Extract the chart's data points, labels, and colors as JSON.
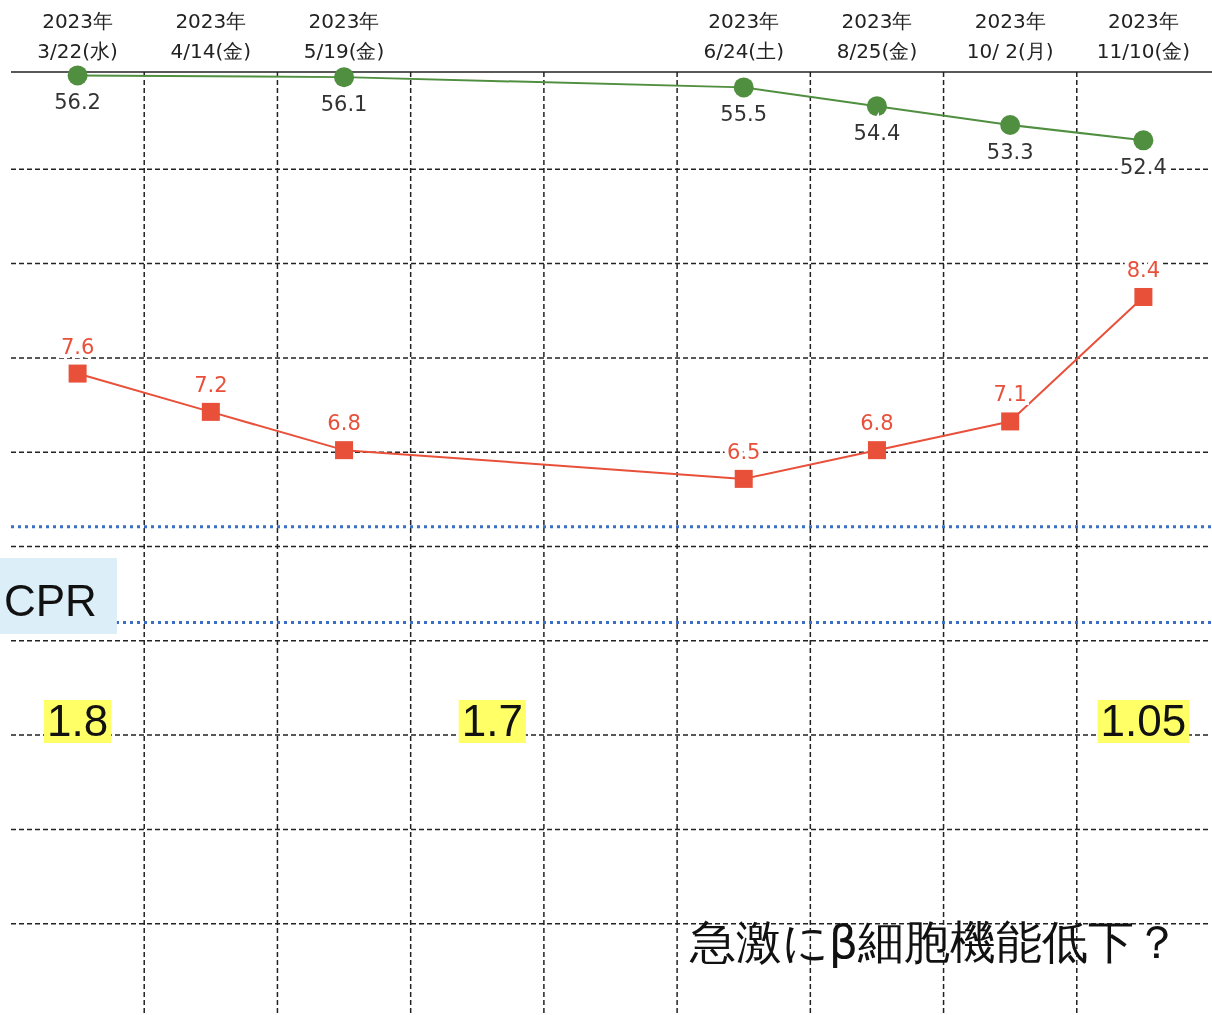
{
  "chart_data": {
    "type": "line",
    "categories": [
      "2023年\n3/22(水)",
      "2023年\n4/14(金)",
      "2023年\n5/19(金)",
      null,
      null,
      "2023年\n6/24(土)",
      "2023年\n8/25(金)",
      "2023年\n10/ 2(月)",
      "2023年\n11/10(金)"
    ],
    "ylim": [
      0.9,
      10.75
    ],
    "y2lim": [
      1.2,
      56.4
    ],
    "tick_labels": "x",
    "grid": true,
    "data_labels": true,
    "series": [
      {
        "axis": "y2",
        "color": "#4f8f3f",
        "marker": "circle",
        "values": [
          56.2,
          null,
          56.1,
          null,
          null,
          55.5,
          54.4,
          53.3,
          52.4
        ]
      },
      {
        "axis": "y",
        "color": "#e8503a",
        "marker": "square",
        "values": [
          7.6,
          7.2,
          6.8,
          null,
          null,
          6.5,
          6.8,
          7.1,
          8.4
        ]
      }
    ],
    "ref_lines": [
      {
        "axis": "y",
        "value": 6.0,
        "color": "#3a6fc4",
        "line_style": "dotted"
      },
      {
        "axis": "y",
        "value": 5.0,
        "color": "#3a6fc4",
        "line_style": "dotted"
      }
    ],
    "annotations": [
      "急激にβ細胞機能低下？",
      "CPR",
      "1.8",
      "1.7",
      "1.05"
    ]
  }
}
